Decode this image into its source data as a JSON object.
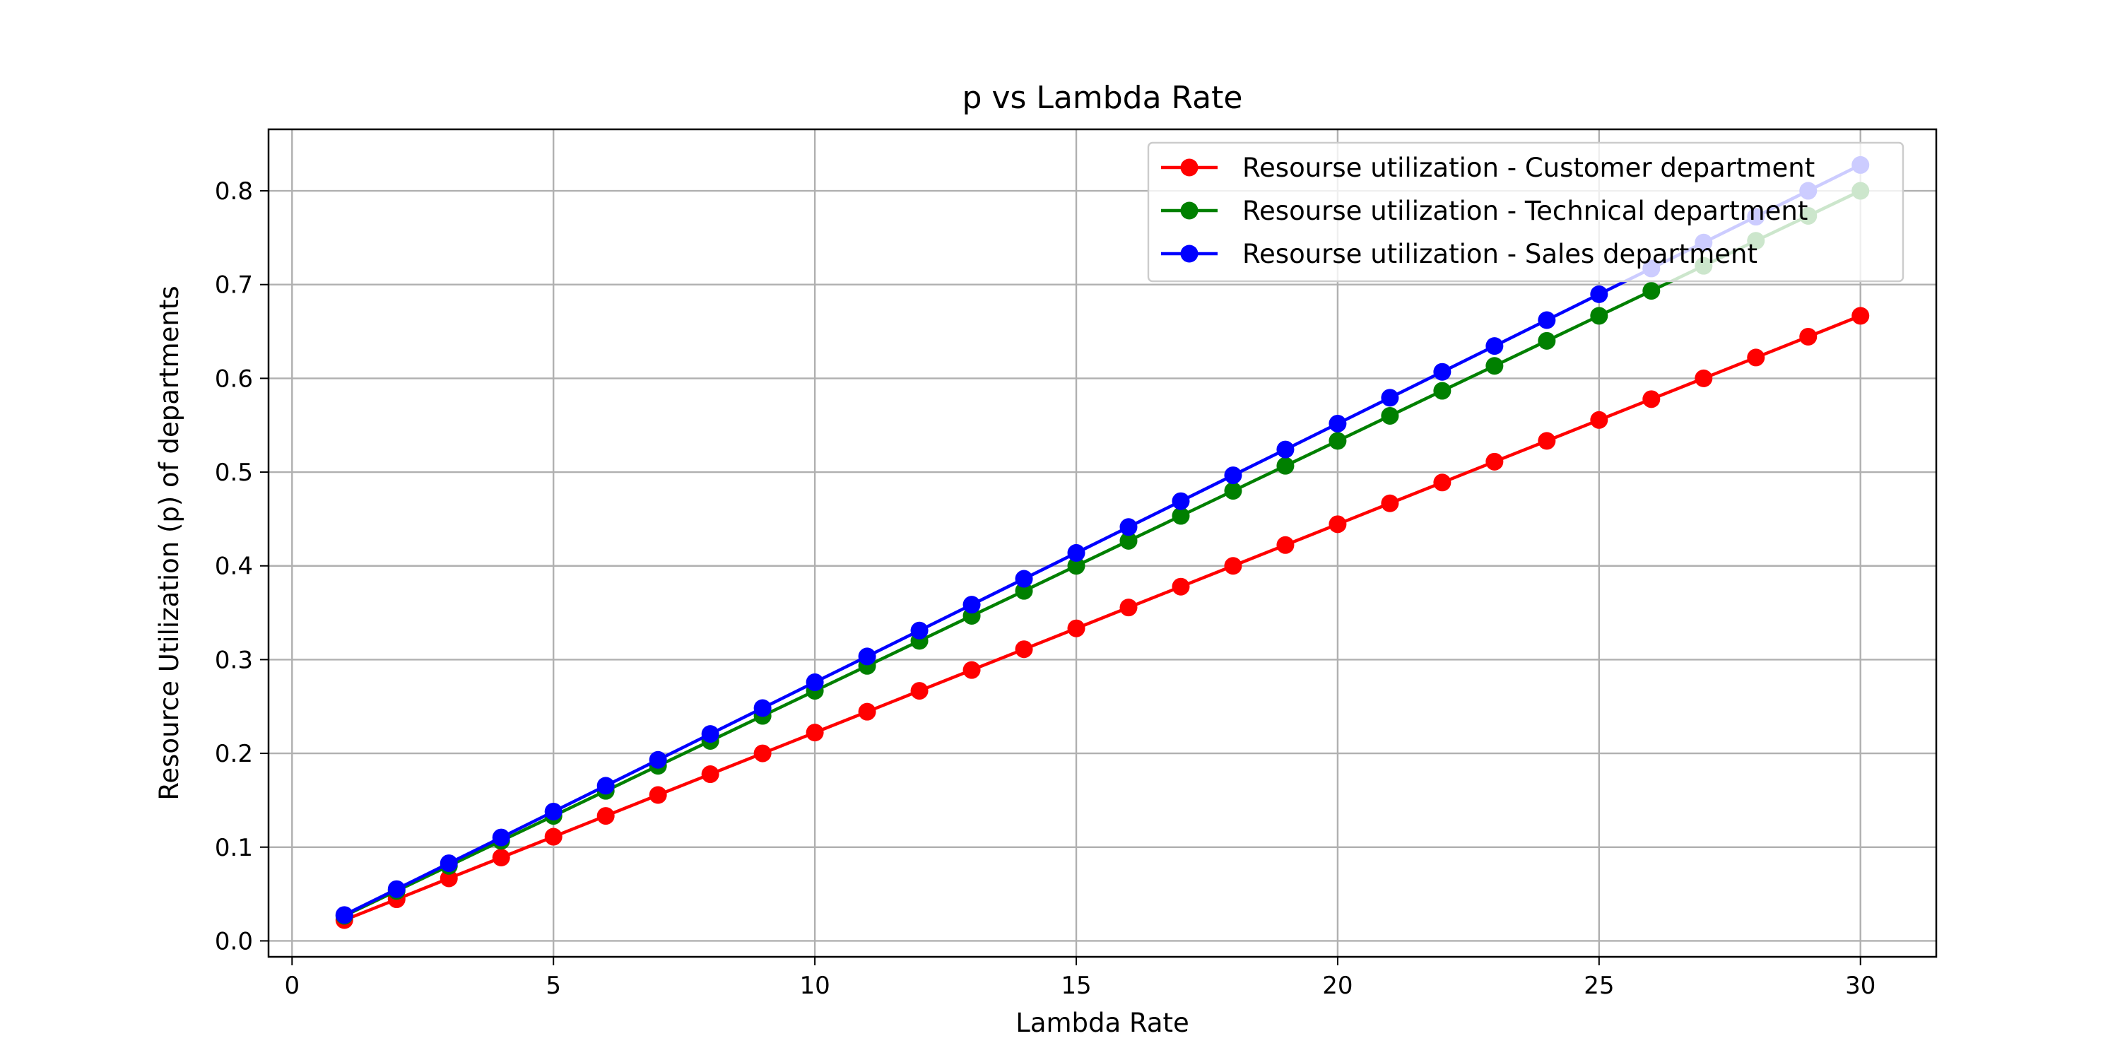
{
  "chart_data": {
    "type": "line",
    "title": "p vs Lambda Rate",
    "xlabel": "Lambda Rate",
    "ylabel": "Resource Utilization (p) of departments",
    "xlim": [
      -0.45,
      31.45
    ],
    "ylim": [
      -0.017,
      0.8656
    ],
    "xticks": [
      0,
      5,
      10,
      15,
      20,
      25,
      30
    ],
    "yticks": [
      0.0,
      0.1,
      0.2,
      0.3,
      0.4,
      0.5,
      0.6,
      0.7,
      0.8
    ],
    "xtick_labels": [
      "0",
      "5",
      "10",
      "15",
      "20",
      "25",
      "30"
    ],
    "ytick_labels": [
      "0.0",
      "0.1",
      "0.2",
      "0.3",
      "0.4",
      "0.5",
      "0.6",
      "0.7",
      "0.8"
    ],
    "grid": true,
    "legend_position": "top-right",
    "x": [
      1,
      2,
      3,
      4,
      5,
      6,
      7,
      8,
      9,
      10,
      11,
      12,
      13,
      14,
      15,
      16,
      17,
      18,
      19,
      20,
      21,
      22,
      23,
      24,
      25,
      26,
      27,
      28,
      29,
      30
    ],
    "series": [
      {
        "name": "Resourse utilization - Customer department",
        "color": "#ff0000",
        "values": [
          0.0222,
          0.0444,
          0.0667,
          0.0889,
          0.1111,
          0.1333,
          0.1556,
          0.1778,
          0.2,
          0.2222,
          0.2444,
          0.2667,
          0.2889,
          0.3111,
          0.3333,
          0.3556,
          0.3778,
          0.4,
          0.4222,
          0.4444,
          0.4667,
          0.4889,
          0.5111,
          0.5333,
          0.5556,
          0.5778,
          0.6,
          0.6222,
          0.6444,
          0.6667
        ]
      },
      {
        "name": "Resourse utilization - Technical department",
        "color": "#008000",
        "values": [
          0.0267,
          0.0533,
          0.08,
          0.1067,
          0.1333,
          0.16,
          0.1867,
          0.2133,
          0.24,
          0.2667,
          0.2933,
          0.32,
          0.3467,
          0.3733,
          0.4,
          0.4267,
          0.4533,
          0.48,
          0.5067,
          0.5333,
          0.56,
          0.5867,
          0.6133,
          0.64,
          0.6667,
          0.6933,
          0.72,
          0.7467,
          0.7733,
          0.8
        ]
      },
      {
        "name": "Resourse utilization - Sales department",
        "color": "#0000ff",
        "values": [
          0.0276,
          0.0552,
          0.0828,
          0.1103,
          0.1379,
          0.1655,
          0.1931,
          0.2207,
          0.2483,
          0.2759,
          0.3034,
          0.331,
          0.3586,
          0.3862,
          0.4138,
          0.4414,
          0.469,
          0.4966,
          0.5241,
          0.5517,
          0.5793,
          0.6069,
          0.6345,
          0.6621,
          0.6897,
          0.7172,
          0.7448,
          0.7724,
          0.8,
          0.8276
        ]
      }
    ]
  }
}
